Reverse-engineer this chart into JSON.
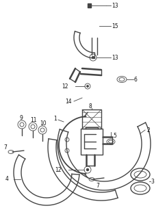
{
  "bg_color": "#ffffff",
  "line_color": "#444444",
  "label_color": "#111111",
  "label_fontsize": 5.5,
  "fig_width": 2.44,
  "fig_height": 3.2,
  "dpi": 100
}
